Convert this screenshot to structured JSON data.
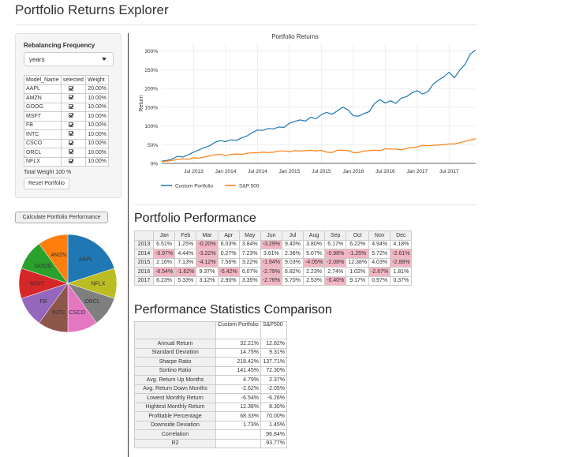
{
  "app": {
    "title": "Portfolio Returns Explorer"
  },
  "sidebar": {
    "rebal_label": "Rebalancing Frequency",
    "rebal_value": "years",
    "table_headers": [
      "Model_Name",
      "selected",
      "Weight"
    ],
    "rows": [
      {
        "name": "AAPL",
        "weight": "20.00%"
      },
      {
        "name": "AMZN",
        "weight": "10.00%"
      },
      {
        "name": "GOOG",
        "weight": "10.00%"
      },
      {
        "name": "MSFT",
        "weight": "10.00%"
      },
      {
        "name": "FB",
        "weight": "10.00%"
      },
      {
        "name": "INTC",
        "weight": "10.00%"
      },
      {
        "name": "CSCO",
        "weight": "10.00%"
      },
      {
        "name": "ORCL",
        "weight": "10.00%"
      },
      {
        "name": "NFLX",
        "weight": "10.00%"
      }
    ],
    "total_weight": "Total Weight 100 %",
    "reset_label": "Reset Portfolio",
    "calc_label": "Calculate Portfolio Performance"
  },
  "pie": {
    "slices": [
      {
        "label": "AAPL",
        "value": 20,
        "color": "#1f77b4"
      },
      {
        "label": "NFLX",
        "value": 10,
        "color": "#bcbd22"
      },
      {
        "label": "ORCL",
        "value": 10,
        "color": "#7f7f7f"
      },
      {
        "label": "CSCO",
        "value": 10,
        "color": "#e377c2"
      },
      {
        "label": "INTC",
        "value": 10,
        "color": "#8c564b"
      },
      {
        "label": "FB",
        "value": 10,
        "color": "#9467bd"
      },
      {
        "label": "MSFT",
        "value": 10,
        "color": "#d62728"
      },
      {
        "label": "GOOG",
        "value": 10,
        "color": "#2ca02c"
      },
      {
        "label": "AMZN",
        "value": 10,
        "color": "#ff7f0e"
      }
    ]
  },
  "chart_data": {
    "type": "line",
    "title": "Portfolio Returns",
    "xlabel": "",
    "ylabel": "Return",
    "ylim": [
      0,
      320
    ],
    "xlim": [
      "2013-01",
      "2017-12"
    ],
    "x_ticks": [
      "Jul 2013",
      "Jan 2014",
      "Jul 2014",
      "Jan 2015",
      "Jul 2015",
      "Jan 2016",
      "Jul 2016",
      "Jan 2017",
      "Jul 2017"
    ],
    "y_ticks": [
      "0%",
      "50%",
      "100%",
      "150%",
      "200%",
      "250%",
      "300%"
    ],
    "x": [
      "2013-01",
      "2013-02",
      "2013-03",
      "2013-04",
      "2013-05",
      "2013-06",
      "2013-07",
      "2013-08",
      "2013-09",
      "2013-10",
      "2013-11",
      "2013-12",
      "2014-01",
      "2014-02",
      "2014-03",
      "2014-04",
      "2014-05",
      "2014-06",
      "2014-07",
      "2014-08",
      "2014-09",
      "2014-10",
      "2014-11",
      "2014-12",
      "2015-01",
      "2015-02",
      "2015-03",
      "2015-04",
      "2015-05",
      "2015-06",
      "2015-07",
      "2015-08",
      "2015-09",
      "2015-10",
      "2015-11",
      "2015-12",
      "2016-01",
      "2016-02",
      "2016-03",
      "2016-04",
      "2016-05",
      "2016-06",
      "2016-07",
      "2016-08",
      "2016-09",
      "2016-10",
      "2016-11",
      "2016-12",
      "2017-01",
      "2017-02",
      "2017-03",
      "2017-04",
      "2017-05",
      "2017-06",
      "2017-07",
      "2017-08",
      "2017-09",
      "2017-10",
      "2017-11",
      "2017-12"
    ],
    "series": [
      {
        "name": "Custom Portfolio",
        "color": "#1f77b4",
        "values": [
          6,
          8,
          12,
          19,
          17,
          23,
          30,
          36,
          42,
          47,
          56,
          61,
          58,
          63,
          61,
          68,
          73,
          82,
          89,
          88,
          93,
          92,
          97,
          96,
          107,
          112,
          116,
          113,
          123,
          119,
          130,
          136,
          131,
          140,
          150,
          143,
          127,
          126,
          133,
          138,
          160,
          170,
          161,
          167,
          160,
          174,
          178,
          188,
          194,
          185,
          191,
          211,
          222,
          231,
          243,
          228,
          249,
          264,
          292,
          302
        ]
      },
      {
        "name": "S&P 500",
        "color": "#ff7f0e",
        "values": [
          5,
          6,
          8,
          11,
          12,
          11,
          15,
          14,
          17,
          20,
          23,
          24,
          21,
          24,
          25,
          24,
          27,
          28,
          28,
          30,
          29,
          30,
          33,
          33,
          31,
          34,
          33,
          34,
          35,
          33,
          35,
          30,
          29,
          35,
          35,
          34,
          29,
          29,
          33,
          34,
          35,
          34,
          39,
          38,
          38,
          36,
          40,
          42,
          44,
          48,
          47,
          48,
          49,
          50,
          52,
          52,
          55,
          59,
          62,
          66
        ]
      }
    ],
    "legend_position": "bottom-left"
  },
  "performance": {
    "title": "Portfolio Performance",
    "months": [
      "Jan",
      "Feb",
      "Mar",
      "Apr",
      "May",
      "Jun",
      "Jul",
      "Aug",
      "Sep",
      "Oct",
      "Nov",
      "Dec"
    ],
    "rows": [
      {
        "year": "2013",
        "vals": [
          "6.51%",
          "1.25%",
          "-0.20%",
          "6.03%",
          "3.84%",
          "-3.29%",
          "9.40%",
          "3.80%",
          "6.17%",
          "6.22%",
          "4.94%",
          "4.18%"
        ]
      },
      {
        "year": "2014",
        "vals": [
          "-0.97%",
          "4.44%",
          "-3.22%",
          "0.27%",
          "7.23%",
          "3.61%",
          "2.36%",
          "5.07%",
          "-0.98%",
          "-1.25%",
          "5.72%",
          "-2.61%"
        ]
      },
      {
        "year": "2015",
        "vals": [
          "2.16%",
          "7.13%",
          "-4.12%",
          "7.56%",
          "3.22%",
          "-1.94%",
          "9.03%",
          "-4.05%",
          "-2.08%",
          "12.38%",
          "4.03%",
          "-2.88%"
        ]
      },
      {
        "year": "2016",
        "vals": [
          "-6.54%",
          "-1.62%",
          "9.37%",
          "-5.42%",
          "6.07%",
          "-2.79%",
          "6.82%",
          "2.23%",
          "2.74%",
          "1.02%",
          "-2.67%",
          "1.81%"
        ]
      },
      {
        "year": "2017",
        "vals": [
          "6.23%",
          "5.33%",
          "3.12%",
          "2.90%",
          "3.35%",
          "-2.76%",
          "5.70%",
          "2.53%",
          "-0.40%",
          "9.17%",
          "0.97%",
          "0.37%"
        ]
      }
    ]
  },
  "stats": {
    "title": "Performance Statistics Comparison",
    "col1": "Custom Portfolio",
    "col2": "S&P500",
    "rows": [
      {
        "label": "Annual Return",
        "a": "32.21%",
        "b": "12.82%"
      },
      {
        "label": "Standard Deviation",
        "a": "14.75%",
        "b": "9.31%"
      },
      {
        "label": "Sharpe Ratio",
        "a": "218.42%",
        "b": "137.71%"
      },
      {
        "label": "Sortino Ratio",
        "a": "141.45%",
        "b": "72.30%"
      },
      {
        "label": "Avg. Return Up Months",
        "a": "4.79%",
        "b": "2.37%"
      },
      {
        "label": "Avg. Return Down Months",
        "a": "-2.62%",
        "b": "-2.05%"
      },
      {
        "label": "Lowest Monthly Return",
        "a": "-6.54%",
        "b": "-6.26%"
      },
      {
        "label": "Hightest Monthly Return",
        "a": "12.38%",
        "b": "8.30%"
      },
      {
        "label": "Profitable Percentage",
        "a": "68.33%",
        "b": "70.00%"
      },
      {
        "label": "Downside Deviation",
        "a": "1.73%",
        "b": "1.45%"
      },
      {
        "label": "Correlation",
        "a": "",
        "b": "96.84%"
      },
      {
        "label": "R2",
        "a": "",
        "b": "93.77%"
      }
    ]
  }
}
